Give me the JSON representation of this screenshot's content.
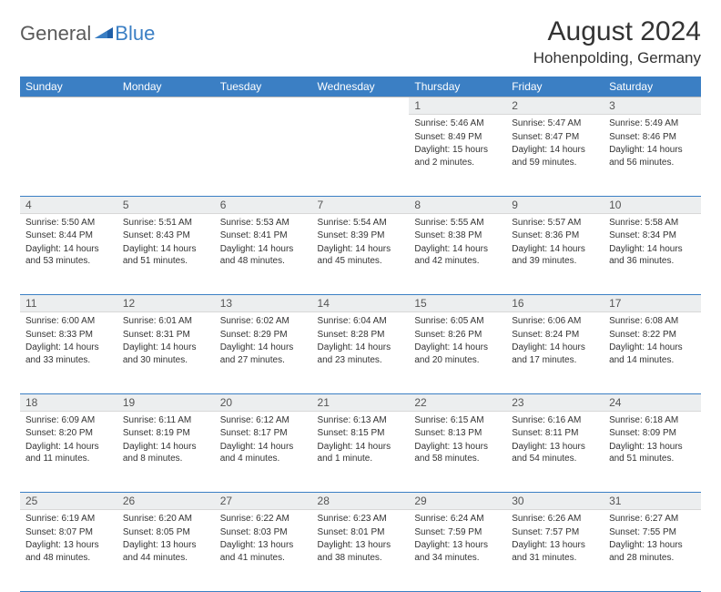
{
  "logo": {
    "part1": "General",
    "part2": "Blue"
  },
  "title": "August 2024",
  "location": "Hohenpolding, Germany",
  "colors": {
    "header_bg": "#3b7fc4",
    "header_text": "#ffffff",
    "daynum_bg": "#eceeef",
    "row_divider": "#3b7fc4",
    "body_text": "#333333"
  },
  "daysOfWeek": [
    "Sunday",
    "Monday",
    "Tuesday",
    "Wednesday",
    "Thursday",
    "Friday",
    "Saturday"
  ],
  "weeks": [
    [
      null,
      null,
      null,
      null,
      {
        "n": "1",
        "sunrise": "5:46 AM",
        "sunset": "8:49 PM",
        "daylight": "15 hours and 2 minutes."
      },
      {
        "n": "2",
        "sunrise": "5:47 AM",
        "sunset": "8:47 PM",
        "daylight": "14 hours and 59 minutes."
      },
      {
        "n": "3",
        "sunrise": "5:49 AM",
        "sunset": "8:46 PM",
        "daylight": "14 hours and 56 minutes."
      }
    ],
    [
      {
        "n": "4",
        "sunrise": "5:50 AM",
        "sunset": "8:44 PM",
        "daylight": "14 hours and 53 minutes."
      },
      {
        "n": "5",
        "sunrise": "5:51 AM",
        "sunset": "8:43 PM",
        "daylight": "14 hours and 51 minutes."
      },
      {
        "n": "6",
        "sunrise": "5:53 AM",
        "sunset": "8:41 PM",
        "daylight": "14 hours and 48 minutes."
      },
      {
        "n": "7",
        "sunrise": "5:54 AM",
        "sunset": "8:39 PM",
        "daylight": "14 hours and 45 minutes."
      },
      {
        "n": "8",
        "sunrise": "5:55 AM",
        "sunset": "8:38 PM",
        "daylight": "14 hours and 42 minutes."
      },
      {
        "n": "9",
        "sunrise": "5:57 AM",
        "sunset": "8:36 PM",
        "daylight": "14 hours and 39 minutes."
      },
      {
        "n": "10",
        "sunrise": "5:58 AM",
        "sunset": "8:34 PM",
        "daylight": "14 hours and 36 minutes."
      }
    ],
    [
      {
        "n": "11",
        "sunrise": "6:00 AM",
        "sunset": "8:33 PM",
        "daylight": "14 hours and 33 minutes."
      },
      {
        "n": "12",
        "sunrise": "6:01 AM",
        "sunset": "8:31 PM",
        "daylight": "14 hours and 30 minutes."
      },
      {
        "n": "13",
        "sunrise": "6:02 AM",
        "sunset": "8:29 PM",
        "daylight": "14 hours and 27 minutes."
      },
      {
        "n": "14",
        "sunrise": "6:04 AM",
        "sunset": "8:28 PM",
        "daylight": "14 hours and 23 minutes."
      },
      {
        "n": "15",
        "sunrise": "6:05 AM",
        "sunset": "8:26 PM",
        "daylight": "14 hours and 20 minutes."
      },
      {
        "n": "16",
        "sunrise": "6:06 AM",
        "sunset": "8:24 PM",
        "daylight": "14 hours and 17 minutes."
      },
      {
        "n": "17",
        "sunrise": "6:08 AM",
        "sunset": "8:22 PM",
        "daylight": "14 hours and 14 minutes."
      }
    ],
    [
      {
        "n": "18",
        "sunrise": "6:09 AM",
        "sunset": "8:20 PM",
        "daylight": "14 hours and 11 minutes."
      },
      {
        "n": "19",
        "sunrise": "6:11 AM",
        "sunset": "8:19 PM",
        "daylight": "14 hours and 8 minutes."
      },
      {
        "n": "20",
        "sunrise": "6:12 AM",
        "sunset": "8:17 PM",
        "daylight": "14 hours and 4 minutes."
      },
      {
        "n": "21",
        "sunrise": "6:13 AM",
        "sunset": "8:15 PM",
        "daylight": "14 hours and 1 minute."
      },
      {
        "n": "22",
        "sunrise": "6:15 AM",
        "sunset": "8:13 PM",
        "daylight": "13 hours and 58 minutes."
      },
      {
        "n": "23",
        "sunrise": "6:16 AM",
        "sunset": "8:11 PM",
        "daylight": "13 hours and 54 minutes."
      },
      {
        "n": "24",
        "sunrise": "6:18 AM",
        "sunset": "8:09 PM",
        "daylight": "13 hours and 51 minutes."
      }
    ],
    [
      {
        "n": "25",
        "sunrise": "6:19 AM",
        "sunset": "8:07 PM",
        "daylight": "13 hours and 48 minutes."
      },
      {
        "n": "26",
        "sunrise": "6:20 AM",
        "sunset": "8:05 PM",
        "daylight": "13 hours and 44 minutes."
      },
      {
        "n": "27",
        "sunrise": "6:22 AM",
        "sunset": "8:03 PM",
        "daylight": "13 hours and 41 minutes."
      },
      {
        "n": "28",
        "sunrise": "6:23 AM",
        "sunset": "8:01 PM",
        "daylight": "13 hours and 38 minutes."
      },
      {
        "n": "29",
        "sunrise": "6:24 AM",
        "sunset": "7:59 PM",
        "daylight": "13 hours and 34 minutes."
      },
      {
        "n": "30",
        "sunrise": "6:26 AM",
        "sunset": "7:57 PM",
        "daylight": "13 hours and 31 minutes."
      },
      {
        "n": "31",
        "sunrise": "6:27 AM",
        "sunset": "7:55 PM",
        "daylight": "13 hours and 28 minutes."
      }
    ]
  ],
  "labels": {
    "sunrise": "Sunrise:",
    "sunset": "Sunset:",
    "daylight": "Daylight:"
  }
}
